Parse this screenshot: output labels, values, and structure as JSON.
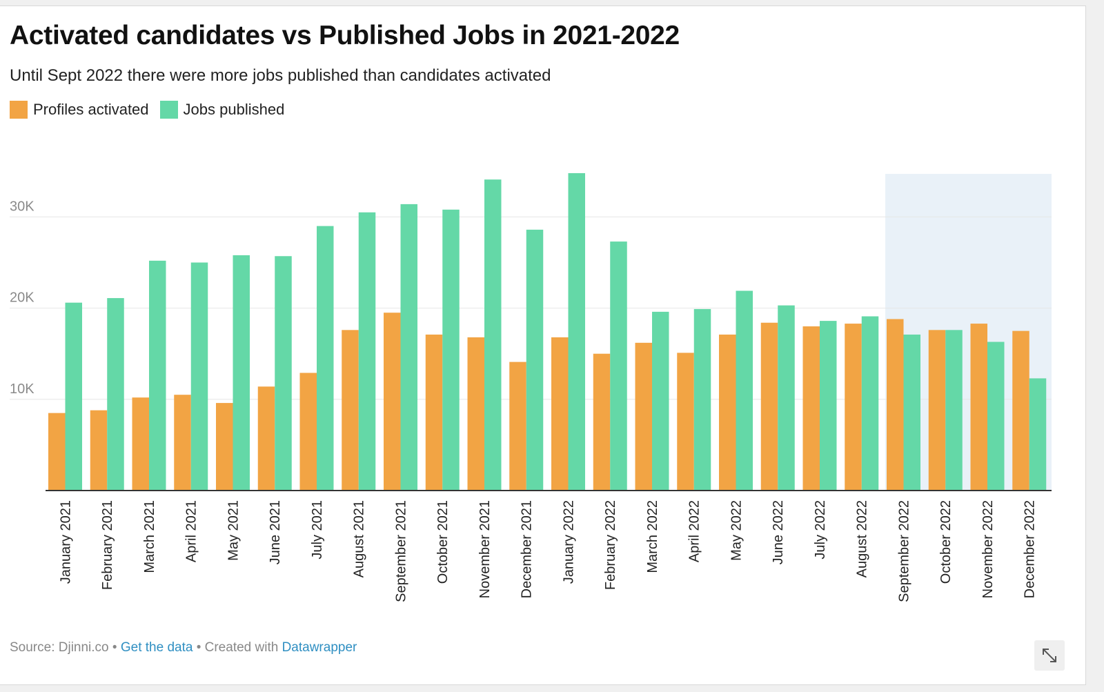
{
  "title": "Activated candidates vs Published Jobs in 2021-2022",
  "subtitle": "Until Sept 2022 there were more jobs published than candidates activated",
  "legend": [
    {
      "label": "Profiles activated",
      "color": "#f2a444"
    },
    {
      "label": "Jobs published",
      "color": "#64d8a7"
    }
  ],
  "footer": {
    "source": "Source: Djinni.co",
    "sep1": " • ",
    "get_data": "Get the data",
    "sep2": " • Created with ",
    "tool": "Datawrapper"
  },
  "icons": {
    "expand": "expand-arrows-icon"
  },
  "chart_data": {
    "type": "bar",
    "categories": [
      "January 2021",
      "February 2021",
      "March 2021",
      "April 2021",
      "May 2021",
      "June 2021",
      "July 2021",
      "August 2021",
      "September 2021",
      "October 2021",
      "November 2021",
      "December 2021",
      "January 2022",
      "February 2022",
      "March 2022",
      "April 2022",
      "May 2022",
      "June 2022",
      "July 2022",
      "August 2022",
      "September 2022",
      "October 2022",
      "November 2022",
      "December 2022"
    ],
    "series": [
      {
        "name": "Profiles activated",
        "color": "#f2a444",
        "values": [
          8500,
          8800,
          10200,
          10500,
          9600,
          11400,
          12900,
          17600,
          19500,
          17100,
          16800,
          14100,
          16800,
          15000,
          16200,
          15100,
          17100,
          18400,
          18000,
          18300,
          18800,
          17600,
          18300,
          17500
        ]
      },
      {
        "name": "Jobs published",
        "color": "#64d8a7",
        "values": [
          20600,
          21100,
          25200,
          25000,
          25800,
          25700,
          29000,
          30500,
          31400,
          30800,
          34100,
          28600,
          34800,
          27300,
          19600,
          19900,
          21900,
          20300,
          18600,
          19100,
          17100,
          17600,
          16300,
          12300
        ]
      }
    ],
    "y_ticks": [
      10000,
      20000,
      30000
    ],
    "y_tick_labels": [
      "10K",
      "20K",
      "30K"
    ],
    "ylim": [
      0,
      35000
    ],
    "grid": true,
    "highlight": {
      "from": "September 2022",
      "to": "December 2022",
      "color": "#e9f1f8"
    }
  }
}
